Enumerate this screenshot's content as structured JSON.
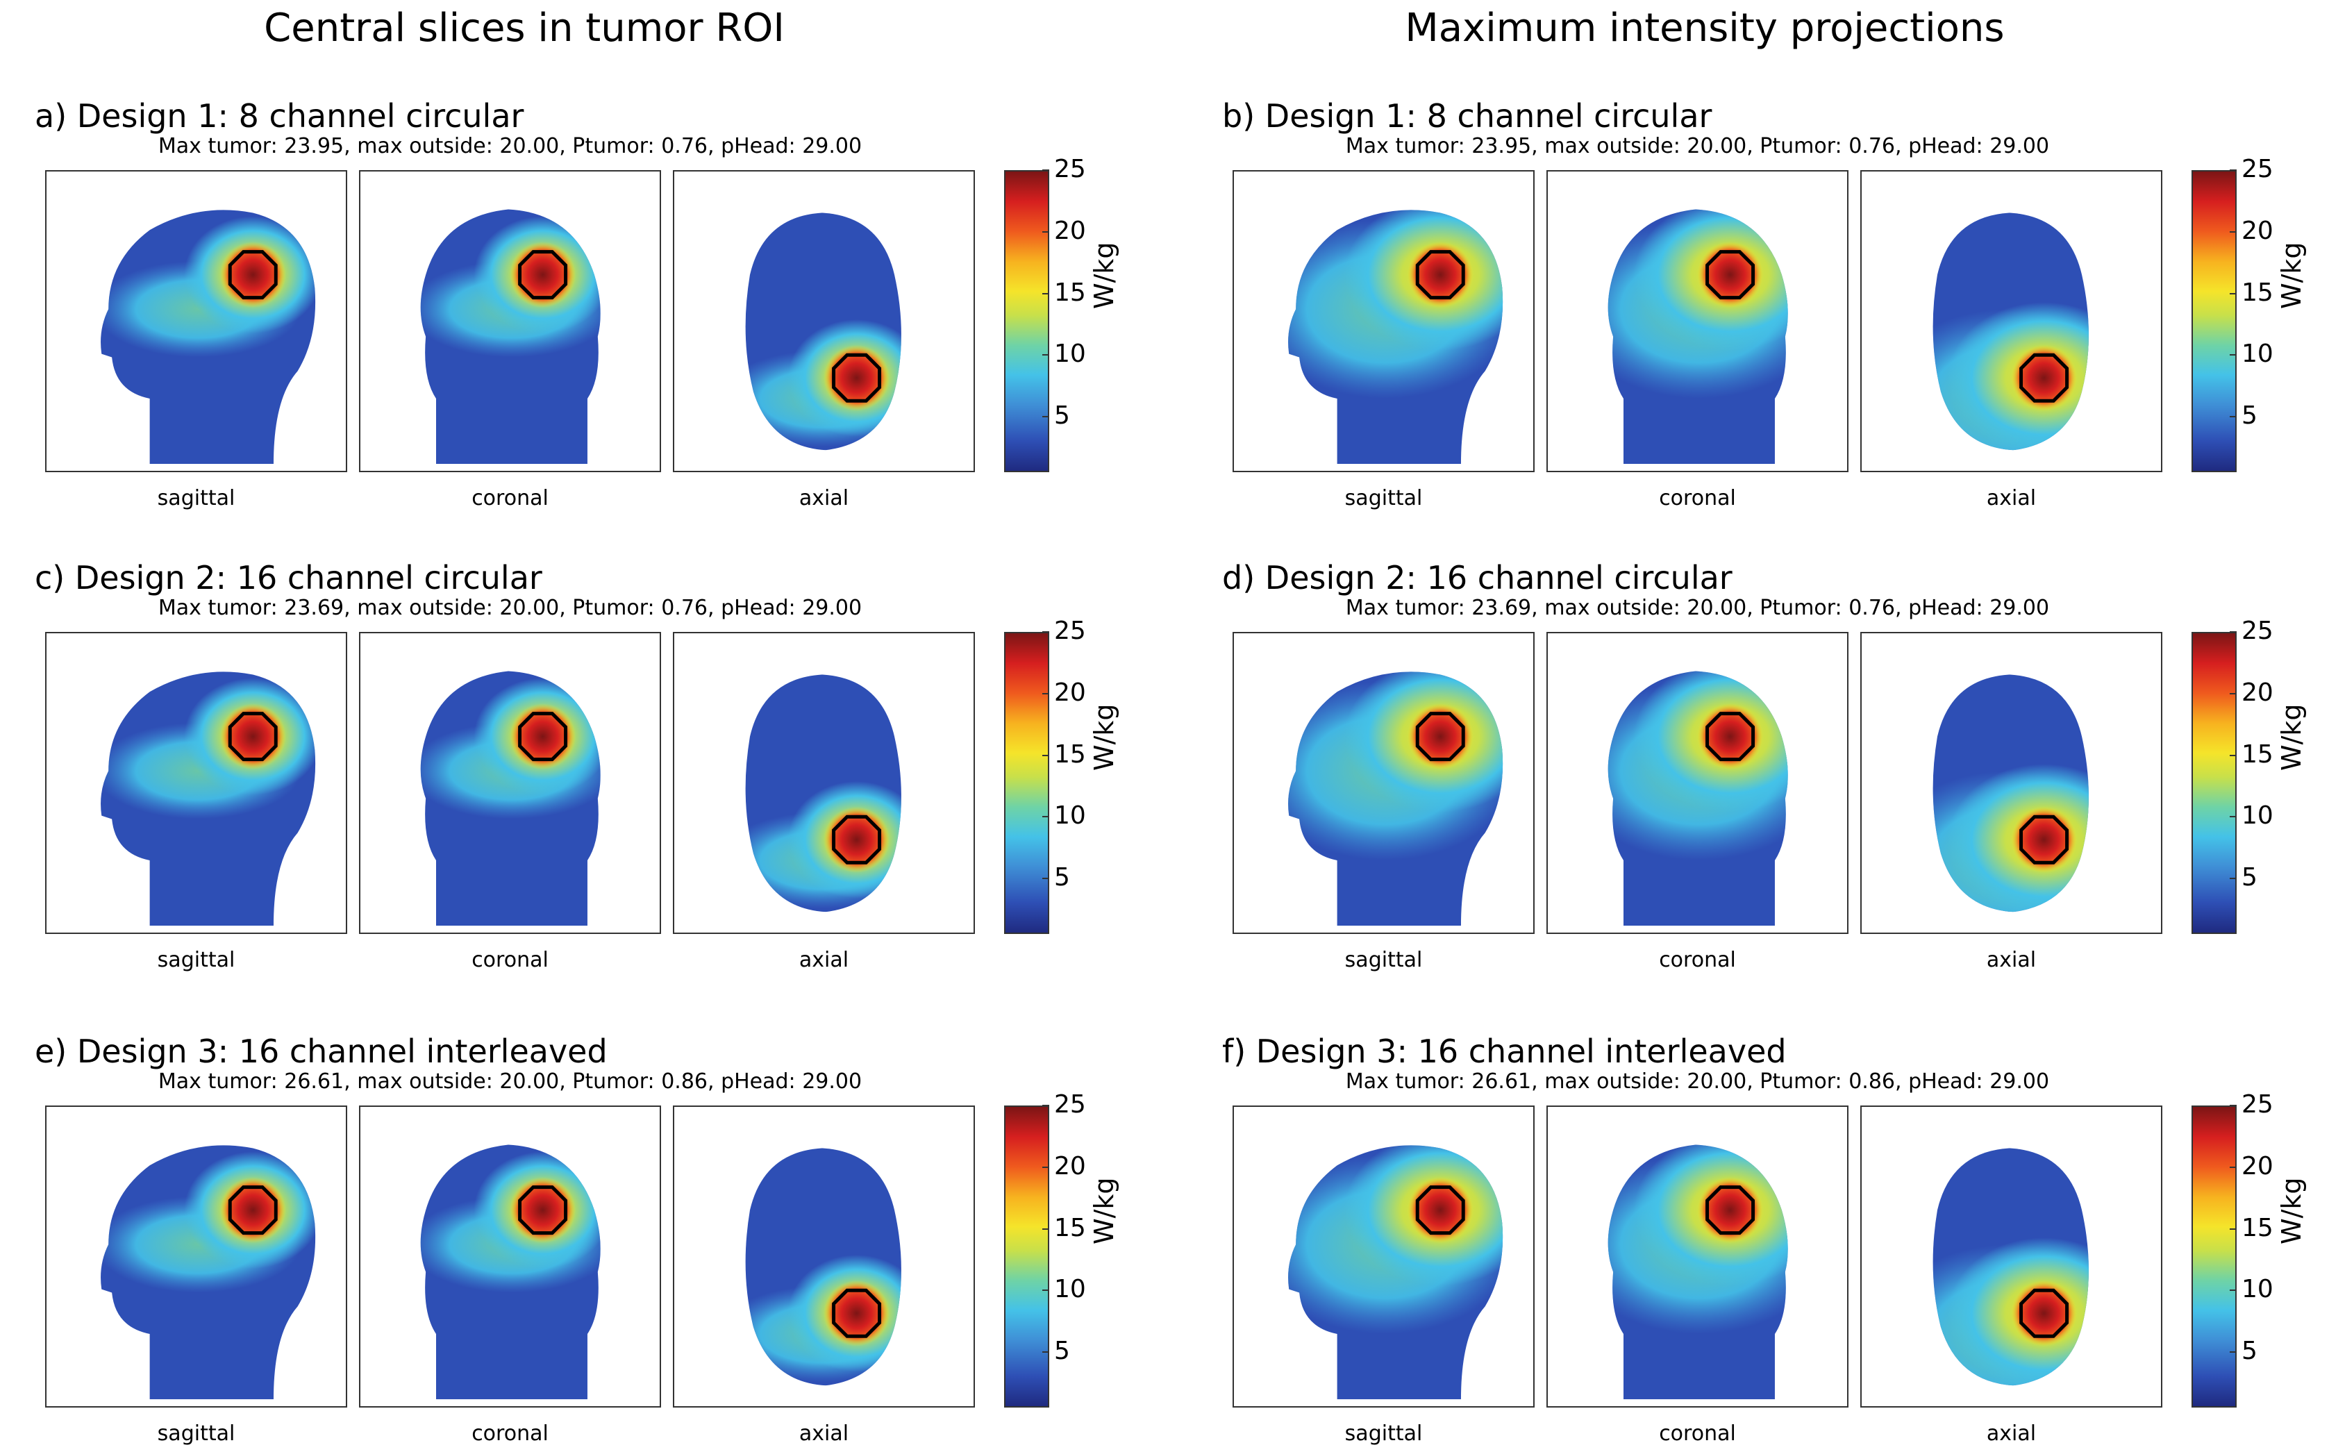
{
  "column_titles": [
    "Central slices in tumor ROI",
    "Maximum intensity projections"
  ],
  "panels": [
    {
      "title": "a) Design 1: 8 channel circular",
      "subtitle": "Max tumor: 23.95, max outside: 20.00, Ptumor: 0.76, pHead: 29.00"
    },
    {
      "title": "b) Design 1: 8 channel circular",
      "subtitle": "Max tumor: 23.95, max outside: 20.00, Ptumor: 0.76, pHead: 29.00"
    },
    {
      "title": "c) Design 2: 16 channel circular",
      "subtitle": "Max tumor: 23.69, max outside: 20.00, Ptumor: 0.76, pHead: 29.00"
    },
    {
      "title": "d) Design 2: 16 channel circular",
      "subtitle": "Max tumor: 23.69, max outside: 20.00, Ptumor: 0.76, pHead: 29.00"
    },
    {
      "title": "e) Design 3: 16 channel interleaved",
      "subtitle": "Max tumor: 26.61, max outside: 20.00, Ptumor: 0.86, pHead: 29.00"
    },
    {
      "title": "f) Design 3: 16 channel interleaved",
      "subtitle": "Max tumor: 26.61, max outside: 20.00, Ptumor: 0.86, pHead: 29.00"
    }
  ],
  "views": [
    "sagittal",
    "coronal",
    "axial"
  ],
  "colorbar": {
    "ticks": [
      "25",
      "20",
      "15",
      "10",
      "5"
    ],
    "unit": "W/kg"
  },
  "colors": {
    "low": "#1f2a80",
    "mid": "#44c2e8",
    "green": "#c8e04a",
    "yellow": "#f5e42a",
    "high": "#d61f1f",
    "peak": "#7c1515",
    "tumor_outline": "#000000"
  }
}
